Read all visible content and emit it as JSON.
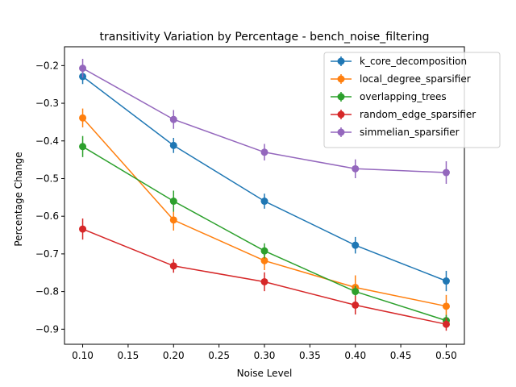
{
  "chart_data": {
    "type": "line",
    "title": "transitivity Variation by Percentage - bench_noise_filtering",
    "xlabel": "Noise Level",
    "ylabel": "Percentage Change",
    "xlim": [
      0.08,
      0.52
    ],
    "ylim": [
      -0.94,
      -0.15
    ],
    "x": [
      0.1,
      0.2,
      0.3,
      0.4,
      0.5
    ],
    "xticks": [
      0.1,
      0.15,
      0.2,
      0.25,
      0.3,
      0.35,
      0.4,
      0.45,
      0.5
    ],
    "xtick_labels": [
      "0.10",
      "0.15",
      "0.20",
      "0.25",
      "0.30",
      "0.35",
      "0.40",
      "0.45",
      "0.50"
    ],
    "yticks": [
      -0.2,
      -0.3,
      -0.4,
      -0.5,
      -0.6,
      -0.7,
      -0.8,
      -0.9
    ],
    "ytick_labels": [
      "−0.2",
      "−0.3",
      "−0.4",
      "−0.5",
      "−0.6",
      "−0.7",
      "−0.8",
      "−0.9"
    ],
    "grid": false,
    "legend_position": "top-right",
    "series": [
      {
        "name": "k_core_decomposition",
        "color": "#1f77b4",
        "values": [
          -0.229,
          -0.412,
          -0.56,
          -0.677,
          -0.772
        ],
        "errors": [
          0.02,
          0.02,
          0.02,
          0.022,
          0.027
        ]
      },
      {
        "name": "local_degree_sparsifier",
        "color": "#ff7f0e",
        "values": [
          -0.339,
          -0.61,
          -0.718,
          -0.789,
          -0.839
        ],
        "errors": [
          0.025,
          0.028,
          0.025,
          0.032,
          0.03
        ]
      },
      {
        "name": "overlapping_trees",
        "color": "#2ca02c",
        "values": [
          -0.415,
          -0.56,
          -0.692,
          -0.8,
          -0.877
        ],
        "errors": [
          0.028,
          0.028,
          0.02,
          0.015,
          0.015
        ]
      },
      {
        "name": "random_edge_sparsifier",
        "color": "#d62728",
        "values": [
          -0.634,
          -0.732,
          -0.774,
          -0.836,
          -0.887
        ],
        "errors": [
          0.028,
          0.018,
          0.025,
          0.025,
          0.017
        ]
      },
      {
        "name": "simmelian_sparsifier",
        "color": "#9467bd",
        "values": [
          -0.207,
          -0.343,
          -0.43,
          -0.474,
          -0.484
        ],
        "errors": [
          0.025,
          0.025,
          0.022,
          0.025,
          0.03
        ]
      }
    ]
  }
}
